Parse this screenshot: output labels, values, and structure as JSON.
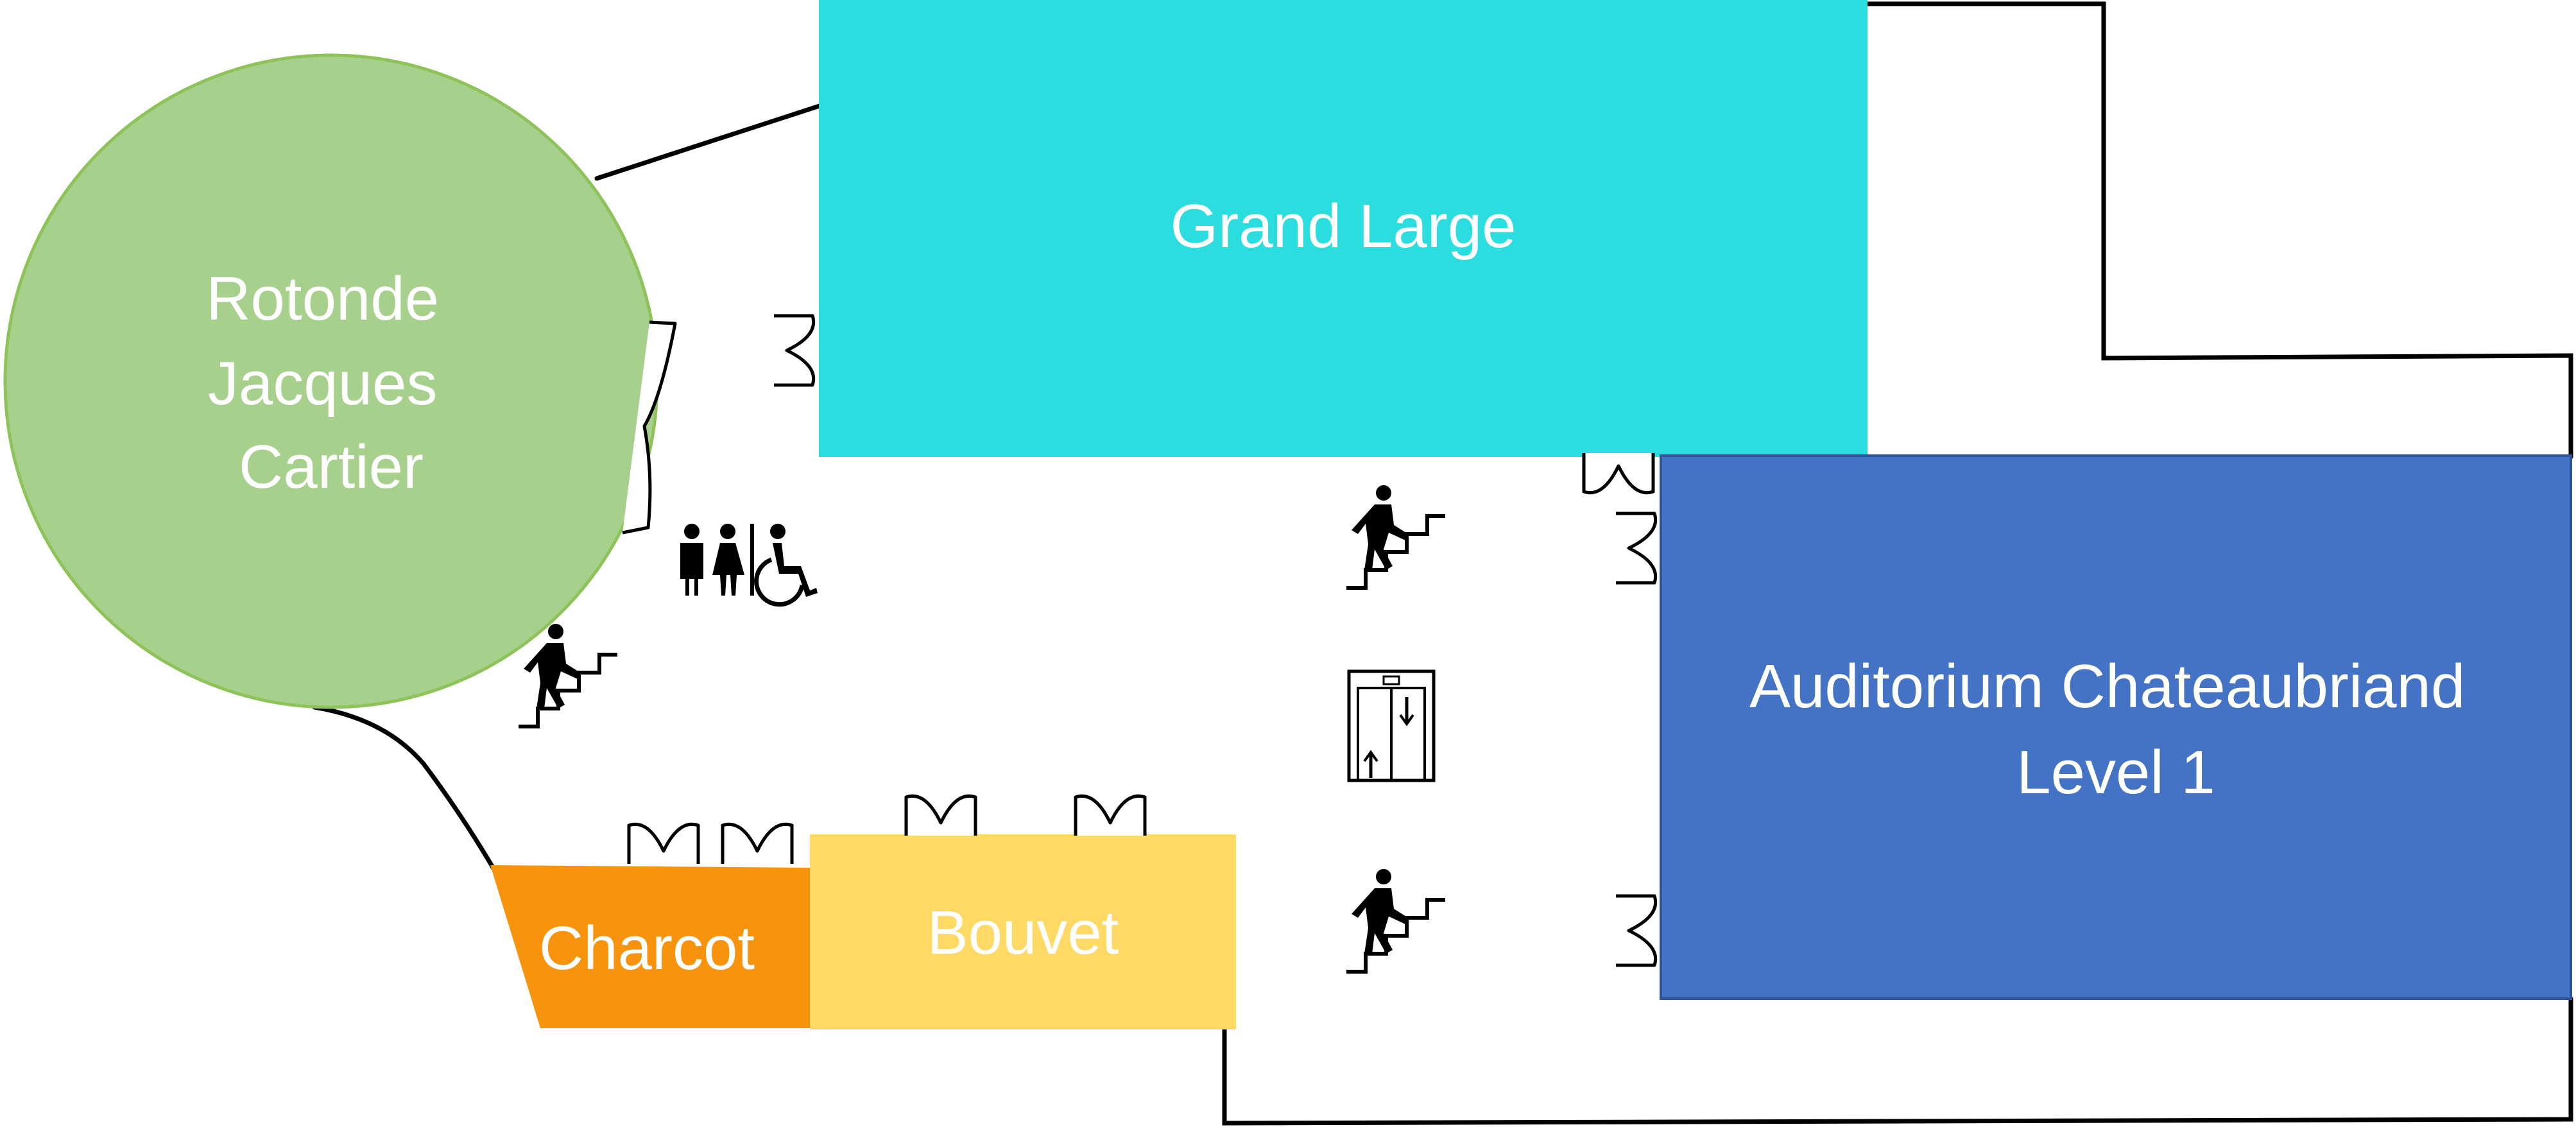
{
  "map": {
    "rooms": {
      "grand_large": {
        "label": "Grand Large",
        "color": "#2cdde0"
      },
      "rotonde": {
        "lines": [
          "Rotonde",
          "Jacques",
          "Cartier"
        ],
        "color": "#a8d08d",
        "border": "#8dc358"
      },
      "auditorium": {
        "lines": [
          "Auditorium Chateaubriand",
          "Level 1"
        ],
        "color": "#4472c4",
        "border": "#2f5597"
      },
      "charcot": {
        "label": "Charcot",
        "color": "#f8930d"
      },
      "bouvet": {
        "label": "Bouvet",
        "color": "#ffd966"
      }
    },
    "icons": {
      "stairs": "stairs-icon",
      "restroom": "restroom-icon",
      "wheelchair": "wheelchair-icon",
      "elevator": "elevator-icon",
      "door": "door-icon"
    }
  }
}
